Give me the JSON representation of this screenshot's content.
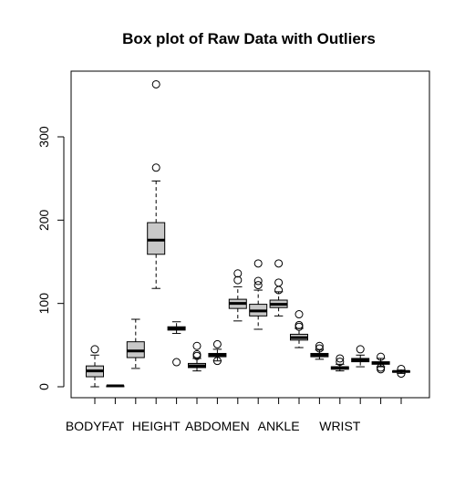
{
  "chart_data": {
    "type": "box",
    "title": "Box plot of Raw Data with Outliers",
    "xlabel": "",
    "ylabel": "",
    "ylim": [
      -15,
      378
    ],
    "yticks": [
      0,
      100,
      200,
      300
    ],
    "box_fill": "#c8c8c8",
    "x_tick_labels": [
      {
        "label": "BODYFAT",
        "index": 1
      },
      {
        "label": "HEIGHT",
        "index": 4
      },
      {
        "label": "ABDOMEN",
        "index": 7
      },
      {
        "label": "ANKLE",
        "index": 10
      },
      {
        "label": "WRIST",
        "index": 13
      }
    ],
    "boxes": [
      {
        "whisker_low": 0,
        "q1": 12,
        "median": 19,
        "q3": 25,
        "whisker_high": 38,
        "outliers": [
          45
        ]
      },
      {
        "whisker_low": 1.0,
        "q1": 1.03,
        "median": 1.06,
        "q3": 1.08,
        "whisker_high": 1.11,
        "outliers": []
      },
      {
        "whisker_low": 22,
        "q1": 35,
        "median": 43,
        "q3": 54,
        "whisker_high": 81,
        "outliers": []
      },
      {
        "whisker_low": 118,
        "q1": 159,
        "median": 176,
        "q3": 197,
        "whisker_high": 247,
        "outliers": [
          263,
          363
        ]
      },
      {
        "whisker_low": 64,
        "q1": 68,
        "median": 70,
        "q3": 72,
        "whisker_high": 78,
        "outliers": [
          29.5
        ]
      },
      {
        "whisker_low": 19,
        "q1": 23,
        "median": 25,
        "q3": 28,
        "whisker_high": 34,
        "outliers": [
          37,
          39,
          49
        ]
      },
      {
        "whisker_low": 31,
        "q1": 36,
        "median": 38,
        "q3": 40,
        "whisker_high": 45,
        "outliers": [
          31,
          51
        ]
      },
      {
        "whisker_low": 79,
        "q1": 94,
        "median": 100,
        "q3": 105,
        "whisker_high": 120,
        "outliers": [
          128,
          136
        ]
      },
      {
        "whisker_low": 69,
        "q1": 85,
        "median": 91,
        "q3": 99,
        "whisker_high": 116,
        "outliers": [
          122,
          127,
          148
        ]
      },
      {
        "whisker_low": 85,
        "q1": 95,
        "median": 99,
        "q3": 104,
        "whisker_high": 114,
        "outliers": [
          116,
          125,
          148
        ]
      },
      {
        "whisker_low": 47,
        "q1": 56,
        "median": 59,
        "q3": 63,
        "whisker_high": 70,
        "outliers": [
          72,
          74,
          87
        ]
      },
      {
        "whisker_low": 33,
        "q1": 36,
        "median": 38,
        "q3": 40,
        "whisker_high": 44,
        "outliers": [
          46,
          49
        ]
      },
      {
        "whisker_low": 19,
        "q1": 21,
        "median": 23,
        "q3": 24,
        "whisker_high": 27,
        "outliers": [
          30,
          34
        ]
      },
      {
        "whisker_low": 24,
        "q1": 30,
        "median": 32,
        "q3": 34,
        "whisker_high": 38,
        "outliers": [
          45
        ]
      },
      {
        "whisker_low": 24,
        "q1": 27,
        "median": 28.5,
        "q3": 30,
        "whisker_high": 34,
        "outliers": [
          21,
          23,
          36
        ]
      },
      {
        "whisker_low": 16,
        "q1": 17.5,
        "median": 18.3,
        "q3": 18.8,
        "whisker_high": 20,
        "outliers": [
          15.8,
          21.4
        ]
      }
    ]
  }
}
